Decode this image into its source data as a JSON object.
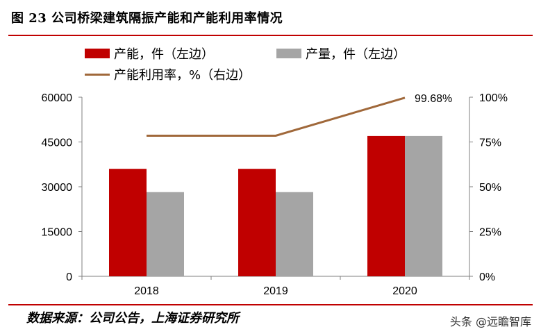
{
  "title": "图 23 公司桥梁建筑隔振产能和产能利用率情况",
  "source": "数据来源：公司公告，上海证券研究所",
  "watermark": "头条 @远瞻智库",
  "colors": {
    "capacity": "#c00000",
    "output": "#a5a5a5",
    "utilization": "#a0683a",
    "rule": "#c00000"
  },
  "legend": {
    "capacity": "产能，件（左边）",
    "output": "产量，件（左边）",
    "utilization": "产能利用率，%（右边）"
  },
  "chart_data": {
    "type": "bar",
    "categories": [
      "2018",
      "2019",
      "2020"
    ],
    "series": [
      {
        "name": "产能，件（左边）",
        "axis": "left",
        "type": "bar",
        "values": [
          36000,
          36000,
          47000
        ]
      },
      {
        "name": "产量，件（左边）",
        "axis": "left",
        "type": "bar",
        "values": [
          28200,
          28200,
          47000
        ]
      },
      {
        "name": "产能利用率，%（右边）",
        "axis": "right",
        "type": "line",
        "values": [
          78.5,
          78.5,
          99.68
        ]
      }
    ],
    "ylim_left": [
      0,
      60000
    ],
    "yticks_left": [
      "0",
      "15000",
      "30000",
      "45000",
      "60000"
    ],
    "ylim_right": [
      0,
      100
    ],
    "yticks_right": [
      "0%",
      "25%",
      "50%",
      "75%",
      "100%"
    ],
    "annotations": [
      {
        "series": "产能利用率，%（右边）",
        "category": "2020",
        "label": "99.68%"
      }
    ],
    "grid": false,
    "legend_position": "top"
  }
}
